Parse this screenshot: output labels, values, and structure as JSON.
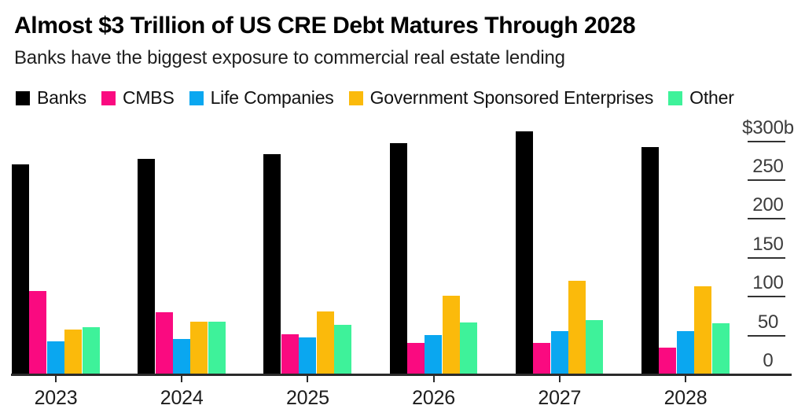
{
  "header": {
    "title": "Almost $3 Trillion of US CRE Debt Matures Through 2028",
    "subtitle": "Banks have the biggest exposure to commercial real estate lending"
  },
  "chart_data": {
    "type": "bar",
    "variant": "grouped",
    "title": "Almost $3 Trillion of US CRE Debt Matures Through 2028",
    "subtitle": "Banks have the biggest exposure to commercial real estate lending",
    "categories": [
      "2023",
      "2024",
      "2025",
      "2026",
      "2027",
      "2028"
    ],
    "series": [
      {
        "name": "Banks",
        "color": "#000000",
        "values": [
          270,
          277,
          283,
          297,
          313,
          292
        ]
      },
      {
        "name": "CMBS",
        "color": "#fa0a80",
        "values": [
          107,
          80,
          52,
          40,
          40,
          34
        ]
      },
      {
        "name": "Life Companies",
        "color": "#0aa7f0",
        "values": [
          42,
          46,
          48,
          51,
          56,
          56
        ]
      },
      {
        "name": "Government Sponsored Enterprises",
        "color": "#fbba0b",
        "values": [
          58,
          68,
          81,
          101,
          120,
          113
        ]
      },
      {
        "name": "Other",
        "color": "#3ef29a",
        "values": [
          61,
          68,
          64,
          67,
          70,
          66
        ]
      }
    ],
    "xlabel": "",
    "ylabel": "$b",
    "ylim": [
      0,
      300
    ],
    "yticks": [
      {
        "value": 300,
        "label": "$300b"
      },
      {
        "value": 250,
        "label": "250"
      },
      {
        "value": 200,
        "label": "200"
      },
      {
        "value": 150,
        "label": "150"
      },
      {
        "value": 100,
        "label": "100"
      },
      {
        "value": 50,
        "label": "50"
      },
      {
        "value": 0,
        "label": "0"
      }
    ],
    "grid": false,
    "axis_side": "right",
    "legend_position": "top",
    "colors": {
      "axis_line": "#2b2b2b",
      "tick_label": "#3c3c3c",
      "category_label": "#1c1c1c",
      "background": "#ffffff"
    }
  }
}
